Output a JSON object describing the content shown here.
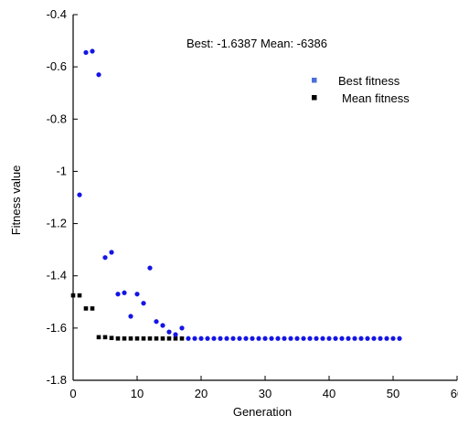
{
  "chart_data": {
    "type": "scatter",
    "title": "",
    "annotation": "Best: -1.6387 Mean: -6386",
    "xlabel": "Generation",
    "ylabel": "Fitness value",
    "xlim": [
      0,
      60
    ],
    "ylim": [
      -1.8,
      -0.4
    ],
    "xticks": [
      0,
      10,
      20,
      30,
      40,
      50,
      60
    ],
    "yticks": [
      -1.8,
      -1.6,
      -1.4,
      -1.2,
      -1.0,
      -0.8,
      -0.6,
      -0.4
    ],
    "xtick_labels": [
      "0",
      "10",
      "20",
      "30",
      "40",
      "50",
      "60"
    ],
    "ytick_labels": [
      "-1.8",
      "-1.6",
      "-1.4",
      "-1.2",
      "-1",
      "-0.8",
      "-0.6",
      "-0.4"
    ],
    "grid": false,
    "legend_position": "top-right",
    "legend": [
      {
        "label": "Best fitness",
        "color": "#4a6fd8"
      },
      {
        "label": "Mean fitness",
        "color": "#000000"
      }
    ],
    "series": [
      {
        "name": "Best fitness",
        "color": "#1414e6",
        "x": [
          1,
          2,
          3,
          4,
          5,
          6,
          7,
          8,
          9,
          10,
          11,
          12,
          13,
          14,
          15,
          16,
          17,
          18,
          19,
          20,
          21,
          22,
          23,
          24,
          25,
          26,
          27,
          28,
          29,
          30,
          31,
          32,
          33,
          34,
          35,
          36,
          37,
          38,
          39,
          40,
          41,
          42,
          43,
          44,
          45,
          46,
          47,
          48,
          49,
          50,
          51
        ],
        "y": [
          -1.09,
          -0.545,
          -0.54,
          -0.63,
          -1.33,
          -1.31,
          -1.47,
          -1.465,
          -1.555,
          -1.47,
          -1.505,
          -1.37,
          -1.575,
          -1.59,
          -1.615,
          -1.625,
          -1.6,
          -1.64,
          -1.64,
          -1.64,
          -1.64,
          -1.64,
          -1.64,
          -1.64,
          -1.64,
          -1.64,
          -1.64,
          -1.64,
          -1.64,
          -1.64,
          -1.64,
          -1.64,
          -1.64,
          -1.64,
          -1.64,
          -1.64,
          -1.64,
          -1.64,
          -1.64,
          -1.64,
          -1.64,
          -1.64,
          -1.64,
          -1.64,
          -1.64,
          -1.64,
          -1.64,
          -1.64,
          -1.64,
          -1.64,
          -1.64
        ]
      },
      {
        "name": "Mean fitness",
        "color": "#000000",
        "x": [
          0,
          1,
          2,
          3,
          4,
          5,
          6,
          7,
          8,
          9,
          10,
          11,
          12,
          13,
          14,
          15,
          16,
          17
        ],
        "y": [
          -1.475,
          -1.475,
          -1.525,
          -1.525,
          -1.635,
          -1.635,
          -1.638,
          -1.64,
          -1.64,
          -1.64,
          -1.64,
          -1.64,
          -1.64,
          -1.64,
          -1.64,
          -1.64,
          -1.64,
          -1.64
        ]
      }
    ]
  }
}
